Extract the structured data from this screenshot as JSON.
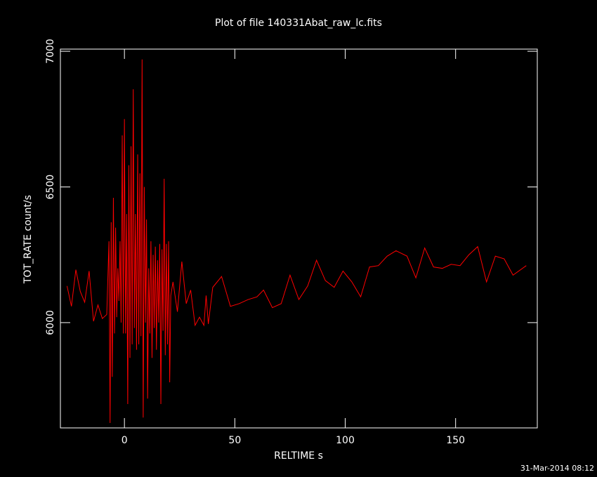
{
  "chart_data": {
    "type": "line",
    "title": "Plot of file 140331Abat_raw_lc.fits",
    "xlabel": "RELTIME  s",
    "ylabel": "TOT_RATE  count/s",
    "footer": "31-Mar-2014 08:12",
    "color": "#ff0000",
    "xlim": [
      -29,
      187
    ],
    "ylim": [
      5612,
      7008
    ],
    "xticks": [
      0,
      50,
      100,
      150
    ],
    "yticks": [
      6000,
      6500,
      7000
    ],
    "x": [
      -26,
      -24,
      -22,
      -20,
      -18,
      -16,
      -14,
      -12,
      -10,
      -8,
      -7,
      -6.5,
      -6,
      -5.5,
      -5,
      -4.5,
      -4,
      -3.5,
      -3,
      -2.5,
      -2,
      -1.5,
      -1,
      -0.5,
      0,
      0.5,
      1,
      1.5,
      2,
      2.5,
      3,
      3.5,
      4,
      4.5,
      5,
      5.5,
      6,
      6.5,
      7,
      7.5,
      8,
      8.5,
      9,
      9.5,
      10,
      10.5,
      11,
      11.5,
      12,
      12.5,
      13,
      13.5,
      14,
      14.5,
      15,
      15.5,
      16,
      16.5,
      17,
      17.5,
      18,
      18.5,
      19,
      19.5,
      20,
      20.5,
      21,
      22,
      24,
      26,
      28,
      30,
      32,
      34,
      36,
      37,
      38,
      40,
      44,
      48,
      52,
      56,
      60,
      63,
      67,
      71,
      75,
      79,
      83,
      87,
      91,
      95,
      99,
      103,
      107,
      111,
      115,
      119,
      123,
      128,
      132,
      136,
      140,
      144,
      148,
      152,
      156,
      160,
      164,
      168,
      172,
      176,
      182
    ],
    "values": [
      6135,
      6060,
      6195,
      6115,
      6075,
      6190,
      6005,
      6065,
      6015,
      6030,
      6300,
      5630,
      6370,
      5800,
      6460,
      5960,
      6350,
      6020,
      6200,
      6080,
      6300,
      6000,
      6690,
      5960,
      6750,
      5960,
      6400,
      5700,
      6580,
      5870,
      6650,
      5920,
      6860,
      5980,
      6400,
      5900,
      6620,
      5920,
      6550,
      5950,
      6970,
      5650,
      6500,
      6000,
      6380,
      5720,
      6200,
      5960,
      6300,
      5870,
      6250,
      5980,
      6280,
      5900,
      6230,
      6000,
      6290,
      5700,
      6270,
      5970,
      6530,
      5880,
      6290,
      5920,
      6300,
      5780,
      6100,
      6150,
      6040,
      6225,
      6070,
      6120,
      5990,
      6020,
      5990,
      6100,
      5995,
      6130,
      6170,
      6060,
      6070,
      6085,
      6095,
      6120,
      6055,
      6070,
      6175,
      6085,
      6135,
      6230,
      6155,
      6130,
      6190,
      6150,
      6095,
      6205,
      6210,
      6245,
      6265,
      6245,
      6165,
      6275,
      6205,
      6200,
      6215,
      6210,
      6250,
      6280,
      6150,
      6245,
      6235,
      6175,
      6210
    ]
  }
}
